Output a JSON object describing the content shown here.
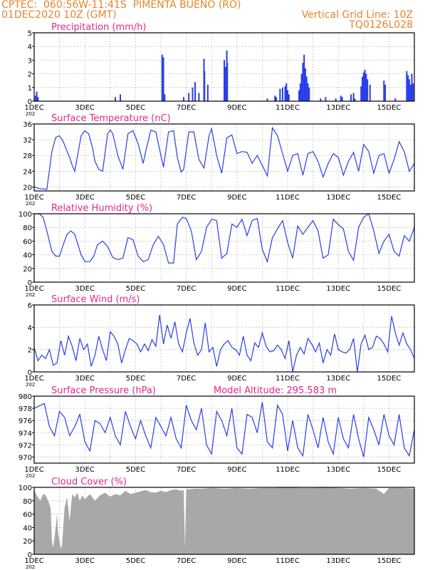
{
  "header": {
    "left1": "CPTEC:  060:56W-11:41S  PIMENTA BUENO (RO)",
    "left2": "01DEC2020 10Z (GMT)",
    "right1": "Vertical Grid Line: 10Z",
    "right2": "TQ0126L028"
  },
  "colors": {
    "header": "#e8842c",
    "title": "#e0288c",
    "line": "#2a3ee8",
    "cloud": "#a8a8a8",
    "grid": "#b0b0b0"
  },
  "x_axis": {
    "ticks": [
      "1DEC",
      "3DEC",
      "5DEC",
      "7DEC",
      "9DEC",
      "11DEC",
      "13DEC",
      "15DEC"
    ],
    "year_fragment": "202"
  },
  "chart_data": [
    {
      "type": "bar",
      "title": "Precipitation (mm/h)",
      "ylim": [
        0,
        5
      ],
      "yticks": [
        0,
        1,
        2,
        3,
        4,
        5
      ],
      "xrange_days": [
        0,
        15
      ],
      "x_unit": "days after 01DEC2020 10Z",
      "bars": [
        [
          0.05,
          0.4
        ],
        [
          0.1,
          0.7
        ],
        [
          0.15,
          0.3
        ],
        [
          3.2,
          0.3
        ],
        [
          3.4,
          0.5
        ],
        [
          5.05,
          3.4
        ],
        [
          5.1,
          3.2
        ],
        [
          5.15,
          0.5
        ],
        [
          5.9,
          0.3
        ],
        [
          6.1,
          0.6
        ],
        [
          6.25,
          1.0
        ],
        [
          6.35,
          1.4
        ],
        [
          6.5,
          0.6
        ],
        [
          6.7,
          3.1
        ],
        [
          6.72,
          2.2
        ],
        [
          6.85,
          1.2
        ],
        [
          7.5,
          3.0
        ],
        [
          7.55,
          2.5
        ],
        [
          7.6,
          3.7
        ],
        [
          7.62,
          2.8
        ],
        [
          9.2,
          0.2
        ],
        [
          9.5,
          0.4
        ],
        [
          9.55,
          0.3
        ],
        [
          9.7,
          0.9
        ],
        [
          9.8,
          1.0
        ],
        [
          9.9,
          1.1
        ],
        [
          9.95,
          1.3
        ],
        [
          10.0,
          0.8
        ],
        [
          10.05,
          0.5
        ],
        [
          10.45,
          0.8
        ],
        [
          10.5,
          1.3
        ],
        [
          10.55,
          2.0
        ],
        [
          10.6,
          2.8
        ],
        [
          10.65,
          3.4
        ],
        [
          10.7,
          2.4
        ],
        [
          10.75,
          1.8
        ],
        [
          10.8,
          1.3
        ],
        [
          10.85,
          1.0
        ],
        [
          11.3,
          0.2
        ],
        [
          11.5,
          0.3
        ],
        [
          11.9,
          0.2
        ],
        [
          12.1,
          0.4
        ],
        [
          12.15,
          0.3
        ],
        [
          12.5,
          0.5
        ],
        [
          12.6,
          0.6
        ],
        [
          12.65,
          0.2
        ],
        [
          12.9,
          1.1
        ],
        [
          12.95,
          1.8
        ],
        [
          13.0,
          2.1
        ],
        [
          13.05,
          2.3
        ],
        [
          13.1,
          2.0
        ],
        [
          13.15,
          1.6
        ],
        [
          13.25,
          1.2
        ],
        [
          13.8,
          1.5
        ],
        [
          13.85,
          1.2
        ],
        [
          14.25,
          0.2
        ],
        [
          14.7,
          2.2
        ],
        [
          14.75,
          1.9
        ],
        [
          14.8,
          1.6
        ],
        [
          14.85,
          1.2
        ],
        [
          14.9,
          2.0
        ],
        [
          14.95,
          1.3
        ]
      ]
    },
    {
      "type": "line",
      "title": "Surface Temperature (nC)",
      "ylim": [
        19,
        36
      ],
      "yticks": [
        20,
        24,
        28,
        32,
        36
      ],
      "xrange_days": [
        0,
        15
      ],
      "x_unit": "days after 01DEC2020 10Z",
      "x": [
        0,
        0.1,
        0.2,
        0.35,
        0.5,
        0.7,
        0.85,
        1.0,
        1.15,
        1.3,
        1.4,
        1.5,
        1.6,
        1.85,
        2.0,
        2.15,
        2.3,
        2.4,
        2.55,
        2.7,
        2.9,
        3.0,
        3.1,
        3.3,
        3.5,
        3.7,
        3.9,
        4.1,
        4.3,
        4.4,
        4.6,
        4.8,
        4.95,
        5.1,
        5.3,
        5.5,
        5.65,
        5.8,
        5.9,
        6.1,
        6.3,
        6.5,
        6.7,
        6.9,
        7.0,
        7.2,
        7.4,
        7.6,
        7.8,
        8.0,
        8.2,
        8.4,
        8.6,
        8.8,
        9.0,
        9.2,
        9.4,
        9.6,
        9.8,
        10.0,
        10.2,
        10.4,
        10.6,
        10.8,
        11.0,
        11.2,
        11.4,
        11.6,
        11.8,
        12.0,
        12.2,
        12.4,
        12.6,
        12.8,
        13.0,
        13.2,
        13.4,
        13.6,
        13.8,
        14.0,
        14.2,
        14.4,
        14.6,
        14.8,
        15.0
      ],
      "y": [
        20.1,
        19.8,
        19.6,
        19.5,
        19.4,
        29.0,
        32.6,
        33.0,
        31.5,
        29.0,
        27.5,
        25.5,
        24.0,
        33.0,
        34.3,
        33.5,
        30.0,
        26.5,
        24.5,
        24.0,
        33.5,
        34.5,
        33.5,
        28.0,
        24.5,
        33.5,
        34.3,
        31.0,
        26.0,
        29.0,
        34.4,
        34.0,
        29.5,
        25.0,
        34.0,
        34.3,
        27.5,
        23.8,
        24.5,
        34.0,
        34.0,
        27.0,
        24.8,
        33.0,
        34.8,
        28.0,
        23.5,
        32.5,
        33.2,
        28.5,
        29.0,
        28.8,
        26.0,
        28.0,
        25.5,
        22.8,
        35.0,
        33.0,
        28.5,
        24.0,
        28.0,
        28.5,
        23.0,
        28.5,
        29.0,
        26.5,
        22.5,
        26.0,
        28.5,
        27.5,
        23.0,
        26.5,
        28.8,
        24.0,
        30.8,
        29.0,
        23.5,
        28.0,
        28.5,
        23.5,
        27.0,
        31.5,
        29.0,
        24.0,
        26.0
      ]
    },
    {
      "type": "line",
      "title": "Relative Humidity (%)",
      "ylim": [
        0,
        100
      ],
      "yticks": [
        0,
        20,
        40,
        60,
        80,
        100
      ],
      "xrange_days": [
        0,
        15
      ],
      "x_unit": "days after 01DEC2020 10Z",
      "x": [
        0,
        0.1,
        0.2,
        0.35,
        0.5,
        0.7,
        0.85,
        1.0,
        1.15,
        1.3,
        1.45,
        1.6,
        1.85,
        2.0,
        2.2,
        2.35,
        2.5,
        2.7,
        2.9,
        3.1,
        3.3,
        3.5,
        3.7,
        3.9,
        4.1,
        4.3,
        4.5,
        4.7,
        4.9,
        5.1,
        5.3,
        5.5,
        5.65,
        5.85,
        6.0,
        6.2,
        6.4,
        6.6,
        6.8,
        7.0,
        7.2,
        7.4,
        7.6,
        7.8,
        8.0,
        8.2,
        8.4,
        8.6,
        8.8,
        9.0,
        9.2,
        9.4,
        9.6,
        9.8,
        10.0,
        10.2,
        10.4,
        10.6,
        10.8,
        11.0,
        11.2,
        11.4,
        11.6,
        11.8,
        12.0,
        12.2,
        12.4,
        12.6,
        12.8,
        13.0,
        13.2,
        13.4,
        13.6,
        13.8,
        14.0,
        14.2,
        14.4,
        14.6,
        14.8,
        15.0
      ],
      "y": [
        100,
        100,
        100,
        95,
        75,
        45,
        38,
        38,
        55,
        70,
        75,
        70,
        40,
        30,
        30,
        38,
        55,
        60,
        52,
        36,
        33,
        35,
        65,
        62,
        38,
        30,
        33,
        55,
        67,
        55,
        28,
        28,
        85,
        95,
        93,
        75,
        33,
        45,
        80,
        92,
        90,
        35,
        42,
        85,
        80,
        92,
        68,
        90,
        93,
        48,
        30,
        65,
        78,
        90,
        58,
        35,
        82,
        70,
        80,
        90,
        75,
        35,
        40,
        92,
        84,
        78,
        45,
        32,
        80,
        95,
        100,
        75,
        42,
        60,
        70,
        45,
        38,
        68,
        60,
        80
      ]
    },
    {
      "type": "line",
      "title": "Surface Wind (m/s)",
      "ylim": [
        0,
        6
      ],
      "yticks": [
        0,
        2,
        4,
        6
      ],
      "xrange_days": [
        0,
        15
      ],
      "x_unit": "days after 01DEC2020 10Z",
      "x": [
        0,
        0.15,
        0.3,
        0.45,
        0.6,
        0.75,
        0.9,
        1.05,
        1.2,
        1.35,
        1.5,
        1.65,
        1.8,
        1.95,
        2.1,
        2.25,
        2.4,
        2.55,
        2.7,
        2.85,
        3.0,
        3.15,
        3.3,
        3.45,
        3.6,
        3.75,
        3.9,
        4.05,
        4.2,
        4.35,
        4.5,
        4.65,
        4.8,
        4.95,
        5.1,
        5.25,
        5.4,
        5.55,
        5.7,
        5.85,
        6.0,
        6.15,
        6.3,
        6.45,
        6.6,
        6.75,
        6.9,
        7.05,
        7.2,
        7.35,
        7.5,
        7.65,
        7.8,
        7.95,
        8.1,
        8.25,
        8.4,
        8.55,
        8.7,
        8.85,
        9.0,
        9.15,
        9.3,
        9.45,
        9.6,
        9.75,
        9.9,
        10.05,
        10.2,
        10.35,
        10.5,
        10.65,
        10.8,
        10.95,
        11.1,
        11.25,
        11.4,
        11.55,
        11.7,
        11.85,
        12.0,
        12.15,
        12.3,
        12.45,
        12.6,
        12.75,
        12.9,
        13.05,
        13.2,
        13.35,
        13.5,
        13.65,
        13.8,
        13.95,
        14.1,
        14.25,
        14.4,
        14.55,
        14.7,
        14.85,
        15.0
      ],
      "y": [
        2.2,
        1.0,
        1.5,
        1.2,
        2.0,
        0.6,
        0.8,
        2.8,
        1.5,
        3.2,
        2.3,
        1.0,
        3.0,
        2.0,
        2.5,
        0.5,
        1.5,
        3.2,
        2.0,
        1.0,
        3.6,
        3.2,
        2.5,
        0.8,
        2.0,
        3.0,
        2.8,
        2.5,
        1.8,
        2.5,
        1.9,
        2.9,
        2.3,
        5.1,
        2.5,
        4.2,
        3.0,
        4.5,
        2.5,
        1.8,
        3.5,
        4.8,
        2.6,
        1.5,
        2.0,
        4.4,
        1.8,
        2.2,
        0.5,
        2.0,
        2.5,
        2.8,
        2.2,
        2.0,
        1.5,
        3.2,
        1.5,
        1.0,
        2.6,
        2.2,
        3.5,
        2.3,
        1.8,
        1.9,
        2.4,
        2.0,
        1.2,
        2.8,
        0.0,
        1.5,
        2.2,
        1.6,
        3.0,
        2.5,
        1.8,
        2.6,
        0.8,
        2.0,
        1.5,
        3.4,
        2.0,
        1.8,
        1.7,
        2.0,
        3.0,
        0.0,
        2.5,
        3.3,
        2.0,
        2.2,
        3.2,
        3.0,
        2.5,
        1.8,
        5.0,
        3.5,
        2.4,
        3.5,
        2.5,
        2.0,
        1.2
      ]
    },
    {
      "type": "line",
      "title": "Surface Pressure (hPa)",
      "annotation": "Model Altitude: 295.583  m",
      "ylim": [
        969,
        980
      ],
      "yticks": [
        970,
        972,
        974,
        976,
        978,
        980
      ],
      "xrange_days": [
        0,
        15
      ],
      "x_unit": "days after 01DEC2020 10Z",
      "x": [
        0,
        0.2,
        0.4,
        0.6,
        0.8,
        1.0,
        1.2,
        1.4,
        1.6,
        1.8,
        2.0,
        2.2,
        2.4,
        2.6,
        2.8,
        3.0,
        3.2,
        3.4,
        3.6,
        3.8,
        4.0,
        4.2,
        4.4,
        4.6,
        4.8,
        5.0,
        5.2,
        5.4,
        5.6,
        5.8,
        6.0,
        6.2,
        6.4,
        6.6,
        6.8,
        7.0,
        7.2,
        7.4,
        7.6,
        7.8,
        8.0,
        8.2,
        8.4,
        8.6,
        8.8,
        9.0,
        9.2,
        9.4,
        9.6,
        9.8,
        10.0,
        10.2,
        10.4,
        10.6,
        10.8,
        11.0,
        11.2,
        11.4,
        11.6,
        11.8,
        12.0,
        12.2,
        12.4,
        12.6,
        12.8,
        13.0,
        13.2,
        13.4,
        13.6,
        13.8,
        14.0,
        14.2,
        14.4,
        14.6,
        14.8,
        15.0
      ],
      "y": [
        978.0,
        978.4,
        978.8,
        975.0,
        973.5,
        977.5,
        976.5,
        973.5,
        975.0,
        977.0,
        972.5,
        971.0,
        976.0,
        975.5,
        974.0,
        976.5,
        973.5,
        972.0,
        977.5,
        975.0,
        973.0,
        976.0,
        973.5,
        971.5,
        976.5,
        975.0,
        973.5,
        976.5,
        973.0,
        971.5,
        978.5,
        976.0,
        974.5,
        978.0,
        972.0,
        970.5,
        977.5,
        976.0,
        973.5,
        978.0,
        971.5,
        970.5,
        977.0,
        976.5,
        974.0,
        979.0,
        972.5,
        971.5,
        978.5,
        977.0,
        971.0,
        976.0,
        971.5,
        970.2,
        977.0,
        974.5,
        971.5,
        976.5,
        972.5,
        970.5,
        976.5,
        973.0,
        971.5,
        977.0,
        973.0,
        970.0,
        976.5,
        974.5,
        972.0,
        977.0,
        973.5,
        972.0,
        977.0,
        971.5,
        970.2,
        974.5
      ]
    },
    {
      "type": "area",
      "title": "Cloud Cover (%)",
      "ylim": [
        0,
        100
      ],
      "yticks": [
        0,
        20,
        40,
        60,
        80,
        100
      ],
      "xrange_days": [
        0,
        15
      ],
      "x_unit": "days after 01DEC2020 10Z",
      "x": [
        0,
        0.05,
        0.15,
        0.25,
        0.35,
        0.45,
        0.55,
        0.65,
        0.7,
        0.75,
        0.85,
        0.9,
        0.95,
        1.05,
        1.1,
        1.2,
        1.3,
        1.4,
        1.5,
        1.6,
        1.7,
        1.8,
        1.9,
        2.0,
        2.2,
        2.4,
        2.6,
        2.8,
        3.0,
        3.2,
        3.4,
        3.6,
        3.8,
        4.0,
        4.2,
        4.4,
        4.6,
        4.8,
        5.0,
        5.2,
        5.4,
        5.6,
        5.8,
        5.9,
        5.95,
        6.0,
        6.05,
        6.1,
        6.3,
        6.6,
        7.0,
        7.5,
        8.0,
        8.5,
        9.0,
        9.5,
        10.0,
        10.5,
        11.0,
        11.5,
        12.0,
        12.5,
        13.0,
        13.5,
        13.8,
        14.0,
        14.5,
        15.0
      ],
      "y": [
        98,
        92,
        85,
        80,
        90,
        88,
        80,
        70,
        20,
        10,
        40,
        60,
        30,
        8,
        15,
        70,
        85,
        50,
        90,
        85,
        92,
        80,
        88,
        82,
        90,
        80,
        88,
        92,
        86,
        90,
        88,
        95,
        90,
        92,
        94,
        96,
        93,
        92,
        95,
        93,
        96,
        97,
        95,
        96,
        10,
        96,
        98,
        97,
        98,
        98,
        99,
        98,
        99,
        98,
        99,
        99,
        100,
        99,
        99,
        100,
        99,
        98,
        99,
        98,
        90,
        99,
        99,
        98
      ]
    }
  ]
}
